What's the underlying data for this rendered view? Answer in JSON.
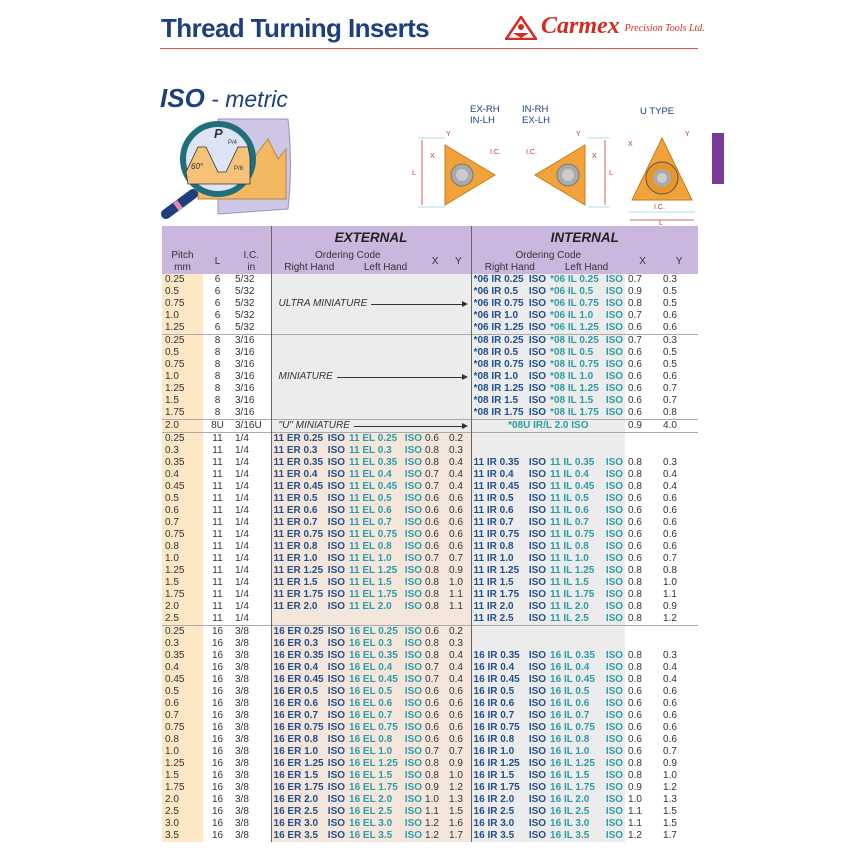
{
  "header": {
    "title": "Thread Turning Inserts",
    "brand": "Carmex",
    "brand_sub": "Precision Tools Ltd.",
    "colors": {
      "title": "#1d3f7e",
      "brand": "#d42a22",
      "rule": "#d9534f"
    }
  },
  "section": {
    "title_bold": "ISO",
    "title_rest": " - metric"
  },
  "illustration": {
    "pitch_label": "P",
    "p4": "P/4",
    "p8": "P/8",
    "angle": "60°"
  },
  "diagrams": {
    "left_label": [
      "EX-RH",
      "IN-LH"
    ],
    "mid_label": [
      "IN-RH",
      "EX-LH"
    ],
    "u_label": "U TYPE",
    "dims": {
      "x": "X",
      "y": "Y",
      "l": "L",
      "ic": "I.C."
    }
  },
  "table": {
    "headers": {
      "pitch": "Pitch",
      "pitch_unit": "mm",
      "l": "L",
      "ic": "I.C.",
      "ic_unit": "in",
      "external": "EXTERNAL",
      "internal": "INTERNAL",
      "ordering_code": "Ordering Code",
      "right_hand": "Right Hand",
      "left_hand": "Left Hand",
      "x": "X",
      "y": "Y"
    },
    "colors": {
      "header": "#cbb6dd",
      "pitch": "#fde8c6",
      "external": "#f5e6dc",
      "internal": "#ececec",
      "right_hand": "#1f4f8e",
      "left_hand": "#2a9ea8"
    },
    "groups": [
      {
        "type": "mini",
        "label": "ULTRA MINIATURE",
        "rows": [
          [
            "0.25",
            "6",
            "5/32",
            "*06 IR 0.25 ISO",
            "*06 IL 0.25 ISO",
            "0.7",
            "0.3"
          ],
          [
            "0.5",
            "6",
            "5/32",
            "*06 IR 0.5 ISO",
            "*06 IL 0.5 ISO",
            "0.9",
            "0.5"
          ],
          [
            "0.75",
            "6",
            "5/32",
            "*06 IR 0.75 ISO",
            "*06 IL 0.75 ISO",
            "0.8",
            "0.5"
          ],
          [
            "1.0",
            "6",
            "5/32",
            "*06 IR 1.0 ISO",
            "*06 IL 1.0 ISO",
            "0.7",
            "0.6"
          ],
          [
            "1.25",
            "6",
            "5/32",
            "*06 IR 1.25 ISO",
            "*06 IL 1.25 ISO",
            "0.6",
            "0.6"
          ]
        ]
      },
      {
        "type": "mini",
        "label": "MINIATURE",
        "rows": [
          [
            "0.25",
            "8",
            "3/16",
            "*08 IR 0.25 ISO",
            "*08 IL 0.25 ISO",
            "0.7",
            "0.3"
          ],
          [
            "0.5",
            "8",
            "3/16",
            "*08 IR 0.5 ISO",
            "*08 IL 0.5 ISO",
            "0.6",
            "0.5"
          ],
          [
            "0.75",
            "8",
            "3/16",
            "*08 IR 0.75 ISO",
            "*08 IL 0.75 ISO",
            "0.6",
            "0.5"
          ],
          [
            "1.0",
            "8",
            "3/16",
            "*08 IR 1.0 ISO",
            "*08 IL 1.0 ISO",
            "0.6",
            "0.6"
          ],
          [
            "1.25",
            "8",
            "3/16",
            "*08 IR 1.25 ISO",
            "*08 IL 1.25 ISO",
            "0.6",
            "0.7"
          ],
          [
            "1.5",
            "8",
            "3/16",
            "*08 IR 1.5 ISO",
            "*08 IL 1.5 ISO",
            "0.6",
            "0.7"
          ],
          [
            "1.75",
            "8",
            "3/16",
            "*08 IR 1.75 ISO",
            "*08 IL 1.75 ISO",
            "0.6",
            "0.8"
          ]
        ]
      },
      {
        "type": "u",
        "label": "\"U\" MINIATURE",
        "rows": [
          [
            "2.0",
            "8U",
            "3/16U",
            "*08U IR/L 2.0 ISO",
            "0.9",
            "4.0"
          ]
        ]
      },
      {
        "type": "full",
        "rows": [
          [
            "0.25",
            "11",
            "1/4",
            "11 ER 0.25 ISO",
            "11 EL 0.25 ISO",
            "0.6",
            "0.2",
            "",
            "",
            "",
            ""
          ],
          [
            "0.3",
            "11",
            "1/4",
            "11 ER 0.3 ISO",
            "11 EL 0.3 ISO",
            "0.8",
            "0.3",
            "",
            "",
            "",
            ""
          ],
          [
            "0.35",
            "11",
            "1/4",
            "11 ER 0.35 ISO",
            "11 EL 0.35 ISO",
            "0.8",
            "0.4",
            "11 IR 0.35 ISO",
            "11 IL 0.35 ISO",
            "0.8",
            "0.3"
          ],
          [
            "0.4",
            "11",
            "1/4",
            "11 ER 0.4 ISO",
            "11 EL 0.4 ISO",
            "0.7",
            "0.4",
            "11 IR 0.4 ISO",
            "11 IL 0.4 ISO",
            "0.8",
            "0.4"
          ],
          [
            "0.45",
            "11",
            "1/4",
            "11 ER 0.45 ISO",
            "11 EL 0.45 ISO",
            "0.7",
            "0.4",
            "11 IR 0.45 ISO",
            "11 IL 0.45 ISO",
            "0.8",
            "0.4"
          ],
          [
            "0.5",
            "11",
            "1/4",
            "11 ER 0.5 ISO",
            "11 EL 0.5 ISO",
            "0.6",
            "0.6",
            "11 IR 0.5 ISO",
            "11 IL 0.5 ISO",
            "0.6",
            "0.6"
          ],
          [
            "0.6",
            "11",
            "1/4",
            "11 ER 0.6 ISO",
            "11 EL 0.6 ISO",
            "0.6",
            "0.6",
            "11 IR 0.6 ISO",
            "11 IL 0.6 ISO",
            "0.6",
            "0.6"
          ],
          [
            "0.7",
            "11",
            "1/4",
            "11 ER 0.7 ISO",
            "11 EL 0.7 ISO",
            "0.6",
            "0.6",
            "11 IR 0.7 ISO",
            "11 IL 0.7 ISO",
            "0.6",
            "0.6"
          ],
          [
            "0.75",
            "11",
            "1/4",
            "11 ER 0.75 ISO",
            "11 EL 0.75 ISO",
            "0.6",
            "0.6",
            "11 IR 0.75 ISO",
            "11 IL 0.75 ISO",
            "0.6",
            "0.6"
          ],
          [
            "0.8",
            "11",
            "1/4",
            "11 ER 0.8 ISO",
            "11 EL 0.8 ISO",
            "0.6",
            "0.6",
            "11 IR 0.8 ISO",
            "11 IL 0.8 ISO",
            "0.6",
            "0.6"
          ],
          [
            "1.0",
            "11",
            "1/4",
            "11 ER 1.0 ISO",
            "11 EL 1.0 ISO",
            "0.7",
            "0.7",
            "11 IR 1.0 ISO",
            "11 IL 1.0 ISO",
            "0.6",
            "0.7"
          ],
          [
            "1.25",
            "11",
            "1/4",
            "11 ER 1.25 ISO",
            "11 EL 1.25 ISO",
            "0.8",
            "0.9",
            "11 IR 1.25 ISO",
            "11 IL 1.25 ISO",
            "0.8",
            "0.8"
          ],
          [
            "1.5",
            "11",
            "1/4",
            "11 ER 1.5 ISO",
            "11 EL 1.5 ISO",
            "0.8",
            "1.0",
            "11 IR 1.5 ISO",
            "11 IL 1.5 ISO",
            "0.8",
            "1.0"
          ],
          [
            "1.75",
            "11",
            "1/4",
            "11 ER 1.75 ISO",
            "11 EL 1.75 ISO",
            "0.8",
            "1.1",
            "11 IR 1.75 ISO",
            "11 IL 1.75 ISO",
            "0.8",
            "1.1"
          ],
          [
            "2.0",
            "11",
            "1/4",
            "11 ER 2.0 ISO",
            "11 EL 2.0 ISO",
            "0.8",
            "1.1",
            "11 IR 2.0 ISO",
            "11 IL 2.0 ISO",
            "0.8",
            "0.9"
          ],
          [
            "2.5",
            "11",
            "1/4",
            "",
            "",
            "",
            "",
            "11 IR 2.5 ISO",
            "11 IL 2.5 ISO",
            "0.8",
            "1.2"
          ]
        ]
      },
      {
        "type": "full",
        "rows": [
          [
            "0.25",
            "16",
            "3/8",
            "16 ER 0.25 ISO",
            "16 EL 0.25 ISO",
            "0.6",
            "0.2",
            "",
            "",
            "",
            ""
          ],
          [
            "0.3",
            "16",
            "3/8",
            "16 ER 0.3 ISO",
            "16 EL 0.3 ISO",
            "0.8",
            "0.3",
            "",
            "",
            "",
            ""
          ],
          [
            "0.35",
            "16",
            "3/8",
            "16 ER 0.35 ISO",
            "16 EL 0.35 ISO",
            "0.8",
            "0.4",
            "16 IR 0.35 ISO",
            "16 IL 0.35 ISO",
            "0.8",
            "0.3"
          ],
          [
            "0.4",
            "16",
            "3/8",
            "16 ER 0.4 ISO",
            "16 EL 0.4 ISO",
            "0.7",
            "0.4",
            "16 IR 0.4 ISO",
            "16 IL 0.4 ISO",
            "0.8",
            "0.4"
          ],
          [
            "0.45",
            "16",
            "3/8",
            "16 ER 0.45 ISO",
            "16 EL 0.45 ISO",
            "0.7",
            "0.4",
            "16 IR 0.45 ISO",
            "16 IL 0.45 ISO",
            "0.8",
            "0.4"
          ],
          [
            "0.5",
            "16",
            "3/8",
            "16 ER 0.5 ISO",
            "16 EL 0.5 ISO",
            "0.6",
            "0.6",
            "16 IR 0.5 ISO",
            "16 IL 0.5 ISO",
            "0.6",
            "0.6"
          ],
          [
            "0.6",
            "16",
            "3/8",
            "16 ER 0.6 ISO",
            "16 EL 0.6 ISO",
            "0.6",
            "0.6",
            "16 IR 0.6 ISO",
            "16 IL 0.6 ISO",
            "0.6",
            "0.6"
          ],
          [
            "0.7",
            "16",
            "3/8",
            "16 ER 0.7 ISO",
            "16 EL 0.7 ISO",
            "0.6",
            "0.6",
            "16 IR 0.7 ISO",
            "16 IL 0.7 ISO",
            "0.6",
            "0.6"
          ],
          [
            "0.75",
            "16",
            "3/8",
            "16 ER 0.75 ISO",
            "16 EL 0.75 ISO",
            "0.6",
            "0.6",
            "16 IR 0.75 ISO",
            "16 IL 0.75 ISO",
            "0.6",
            "0.6"
          ],
          [
            "0.8",
            "16",
            "3/8",
            "16 ER 0.8 ISO",
            "16 EL 0.8 ISO",
            "0.6",
            "0.6",
            "16 IR 0.8 ISO",
            "16 IL 0.8 ISO",
            "0.6",
            "0.6"
          ],
          [
            "1.0",
            "16",
            "3/8",
            "16 ER 1.0 ISO",
            "16 EL 1.0 ISO",
            "0.7",
            "0.7",
            "16 IR 1.0 ISO",
            "16 IL 1.0 ISO",
            "0.6",
            "0.7"
          ],
          [
            "1.25",
            "16",
            "3/8",
            "16 ER 1.25 ISO",
            "16 EL 1.25 ISO",
            "0.8",
            "0.9",
            "16 IR 1.25 ISO",
            "16 IL 1.25 ISO",
            "0.8",
            "0.9"
          ],
          [
            "1.5",
            "16",
            "3/8",
            "16 ER 1.5 ISO",
            "16 EL 1.5 ISO",
            "0.8",
            "1.0",
            "16 IR 1.5 ISO",
            "16 IL 1.5 ISO",
            "0.8",
            "1.0"
          ],
          [
            "1.75",
            "16",
            "3/8",
            "16 ER 1.75 ISO",
            "16 EL 1.75 ISO",
            "0.9",
            "1.2",
            "16 IR 1.75 ISO",
            "16 IL 1.75 ISO",
            "0.9",
            "1.2"
          ],
          [
            "2.0",
            "16",
            "3/8",
            "16 ER 2.0 ISO",
            "16 EL 2.0 ISO",
            "1.0",
            "1.3",
            "16 IR 2.0 ISO",
            "16 IL 2.0 ISO",
            "1.0",
            "1.3"
          ],
          [
            "2.5",
            "16",
            "3/8",
            "16 ER 2.5 ISO",
            "16 EL 2.5 ISO",
            "1.1",
            "1.5",
            "16 IR 2.5 ISO",
            "16 IL 2.5 ISO",
            "1.1",
            "1.5"
          ],
          [
            "3.0",
            "16",
            "3/8",
            "16 ER 3.0 ISO",
            "16 EL 3.0 ISO",
            "1.2",
            "1.6",
            "16 IR 3.0 ISO",
            "16 IL 3.0 ISO",
            "1.1",
            "1.5"
          ],
          [
            "3.5",
            "16",
            "3/8",
            "16 ER 3.5 ISO",
            "16 EL 3.5 ISO",
            "1.2",
            "1.7",
            "16 IR 3.5 ISO",
            "16 IL 3.5 ISO",
            "1.2",
            "1.7"
          ]
        ]
      }
    ]
  }
}
